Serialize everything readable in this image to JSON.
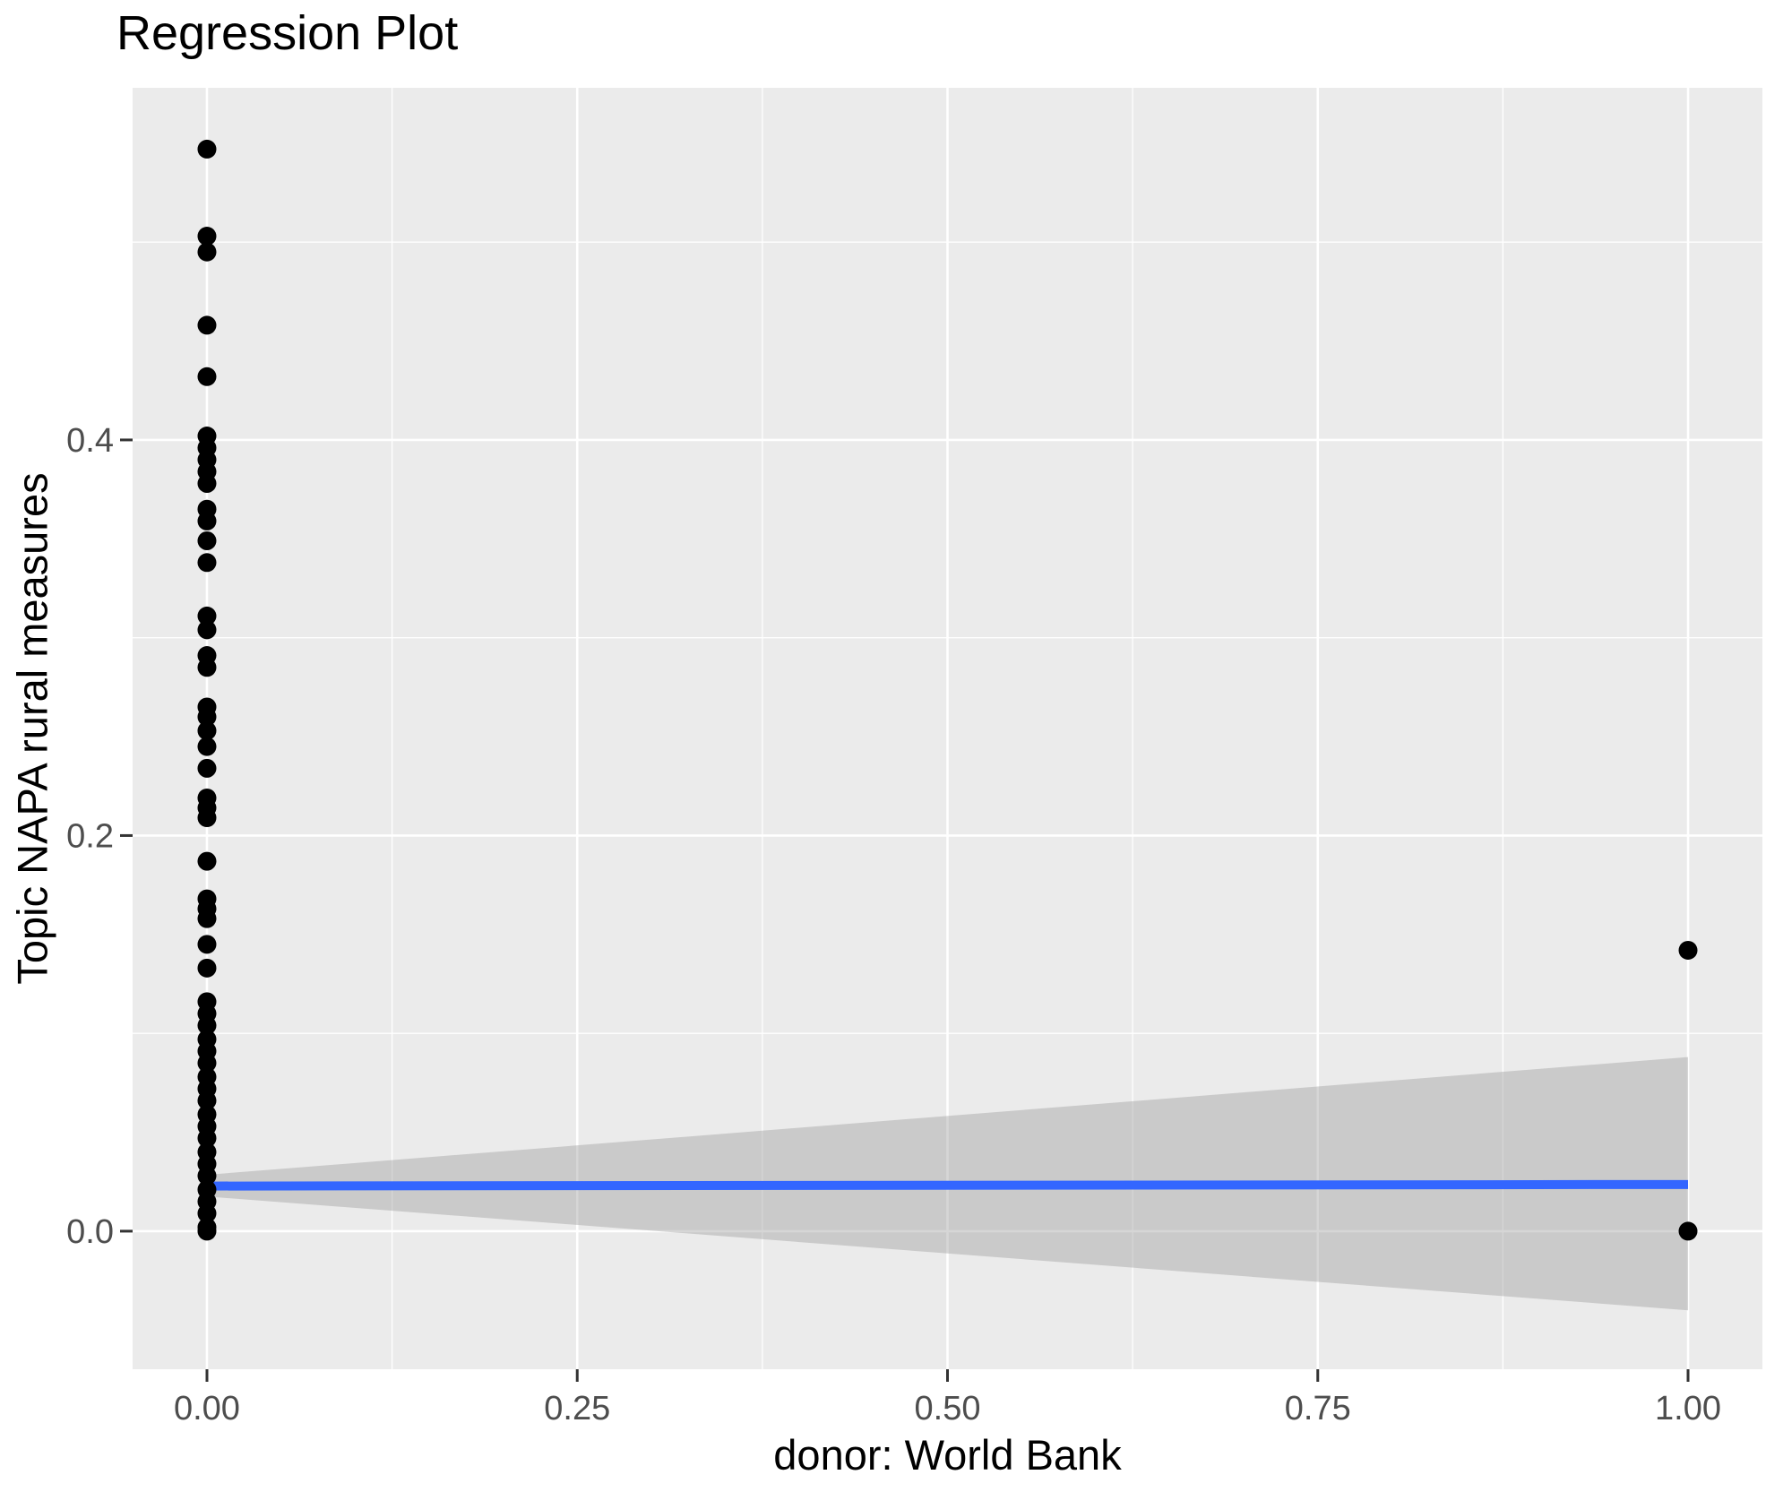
{
  "figure": {
    "title": "Regression Plot"
  },
  "chart_data": {
    "type": "scatter",
    "title": "Regression Plot",
    "xlabel": "donor: World Bank",
    "ylabel": "Topic NAPA rural measures",
    "xlim": [
      -0.0502,
      1.0502
    ],
    "ylim": [
      -0.0698,
      0.578
    ],
    "x_ticks": {
      "values": [
        0.0,
        0.25,
        0.5,
        0.75,
        1.0
      ],
      "labels": [
        "0.00",
        "0.25",
        "0.50",
        "0.75",
        "1.00"
      ]
    },
    "y_ticks": {
      "values": [
        0.0,
        0.2,
        0.4
      ],
      "labels": [
        "0.0",
        "0.2",
        "0.4"
      ]
    },
    "x_minor_ticks": [
      0.125,
      0.375,
      0.625,
      0.875
    ],
    "y_minor_ticks": [
      0.1,
      0.3,
      0.5
    ],
    "grid": "major and minor white gridlines on gray panel",
    "legend": "none",
    "points": [
      [
        0,
        0.547
      ],
      [
        0,
        0.503
      ],
      [
        0,
        0.495
      ],
      [
        0,
        0.458
      ],
      [
        0,
        0.432
      ],
      [
        0,
        0.402
      ],
      [
        0,
        0.396
      ],
      [
        0,
        0.39
      ],
      [
        0,
        0.384
      ],
      [
        0,
        0.378
      ],
      [
        0,
        0.365
      ],
      [
        0,
        0.359
      ],
      [
        0,
        0.349
      ],
      [
        0,
        0.338
      ],
      [
        0,
        0.311
      ],
      [
        0,
        0.304
      ],
      [
        0,
        0.291
      ],
      [
        0,
        0.285
      ],
      [
        0,
        0.265
      ],
      [
        0,
        0.26
      ],
      [
        0,
        0.253
      ],
      [
        0,
        0.245
      ],
      [
        0,
        0.234
      ],
      [
        0,
        0.219
      ],
      [
        0,
        0.214
      ],
      [
        0,
        0.209
      ],
      [
        0,
        0.187
      ],
      [
        0,
        0.168
      ],
      [
        0,
        0.163
      ],
      [
        0,
        0.158
      ],
      [
        0,
        0.145
      ],
      [
        0,
        0.133
      ],
      [
        0,
        0.116
      ],
      [
        0,
        0.11
      ],
      [
        0,
        0.104
      ],
      [
        0,
        0.097
      ],
      [
        0,
        0.091
      ],
      [
        0,
        0.085
      ],
      [
        0,
        0.078
      ],
      [
        0,
        0.072
      ],
      [
        0,
        0.066
      ],
      [
        0,
        0.059
      ],
      [
        0,
        0.053
      ],
      [
        0,
        0.047
      ],
      [
        0,
        0.04
      ],
      [
        0,
        0.034
      ],
      [
        0,
        0.028
      ],
      [
        0,
        0.021
      ],
      [
        0,
        0.015
      ],
      [
        0,
        0.009
      ],
      [
        0,
        0.002
      ],
      [
        0,
        0.0
      ],
      [
        1,
        0.142
      ],
      [
        1,
        0.0
      ]
    ],
    "regression_line": {
      "x": [
        0,
        1
      ],
      "y": [
        0.0228,
        0.0236
      ]
    },
    "ci_band": {
      "x": [
        0,
        1
      ],
      "top": [
        0.0285,
        0.088
      ],
      "bottom": [
        0.0175,
        -0.04
      ]
    },
    "colors": {
      "point": "#000000",
      "line": "#3366FF",
      "band": "rgba(153,153,153,0.4)",
      "panel": "#EBEBEB",
      "grid": "#FFFFFF",
      "tick_mark": "#333333",
      "tick_text": "#4D4D4D",
      "title_text": "#000000"
    }
  }
}
